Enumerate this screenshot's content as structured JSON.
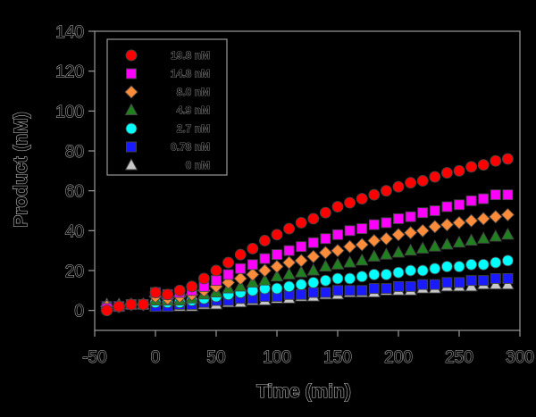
{
  "chart_data": {
    "type": "scatter",
    "title": "",
    "xlabel": "Time (min)",
    "ylabel": "Product (nM)",
    "xlim": [
      -50,
      300
    ],
    "ylim": [
      -10,
      140
    ],
    "xticks": [
      -50,
      0,
      50,
      100,
      150,
      200,
      250,
      300
    ],
    "yticks": [
      0,
      20,
      40,
      60,
      80,
      100,
      120,
      140
    ],
    "legend_position": "top-left",
    "x": [
      -40,
      -30,
      -20,
      -10,
      0,
      10,
      20,
      30,
      40,
      50,
      60,
      70,
      80,
      90,
      100,
      110,
      120,
      130,
      140,
      150,
      160,
      170,
      180,
      190,
      200,
      210,
      220,
      230,
      240,
      250,
      260,
      270,
      280,
      290
    ],
    "series": [
      {
        "name": "19.8 nM",
        "marker": "circle",
        "color": "#ff0000",
        "values": [
          0,
          2,
          3,
          3,
          9,
          8,
          10,
          12,
          16,
          20,
          24,
          28,
          31,
          35,
          38,
          41,
          44,
          46,
          49,
          52,
          54,
          56,
          58,
          60,
          62,
          64,
          65,
          67,
          69,
          70,
          72,
          73,
          75,
          76
        ]
      },
      {
        "name": "14.8 nM",
        "marker": "square",
        "color": "#ff00ff",
        "values": [
          1,
          2,
          3,
          3,
          9,
          8,
          9,
          10,
          12,
          15,
          18,
          21,
          23,
          26,
          28,
          30,
          32,
          34,
          36,
          38,
          40,
          41,
          43,
          44,
          46,
          47,
          49,
          50,
          52,
          53,
          55,
          56,
          58,
          58
        ]
      },
      {
        "name": "8.0 nM",
        "marker": "diamond",
        "color": "#ff8c3a",
        "values": [
          2,
          2,
          3,
          3,
          7,
          6,
          7,
          8,
          10,
          12,
          14,
          16,
          18,
          20,
          22,
          24,
          25,
          27,
          29,
          30,
          32,
          33,
          35,
          36,
          38,
          39,
          40,
          42,
          43,
          44,
          45,
          46,
          47,
          48
        ]
      },
      {
        "name": "4.9 nM",
        "marker": "triangle",
        "color": "#208020",
        "values": [
          2,
          2,
          3,
          3,
          5,
          5,
          5,
          6,
          8,
          9,
          11,
          12,
          14,
          15,
          17,
          18,
          19,
          20,
          22,
          23,
          24,
          25,
          27,
          28,
          29,
          30,
          31,
          32,
          33,
          34,
          35,
          36,
          37,
          38
        ]
      },
      {
        "name": "2.7 nM",
        "marker": "circle",
        "color": "#00ffff",
        "values": [
          2,
          2,
          3,
          3,
          4,
          4,
          4,
          5,
          6,
          7,
          8,
          9,
          10,
          11,
          11,
          12,
          13,
          14,
          15,
          16,
          16,
          17,
          18,
          18,
          19,
          20,
          20,
          21,
          22,
          22,
          23,
          23,
          24,
          25
        ]
      },
      {
        "name": "0.78 nM",
        "marker": "square",
        "color": "#1a1aff",
        "values": [
          2,
          2,
          3,
          3,
          2,
          2,
          3,
          3,
          4,
          5,
          5,
          6,
          6,
          7,
          7,
          8,
          8,
          9,
          9,
          10,
          10,
          10,
          11,
          11,
          12,
          12,
          13,
          13,
          14,
          14,
          15,
          15,
          16,
          16
        ]
      },
      {
        "name": "0 nM",
        "marker": "triangle",
        "color": "#c8c8c8",
        "values": [
          3,
          3,
          3,
          3,
          2,
          2,
          2,
          2,
          3,
          3,
          4,
          4,
          5,
          5,
          6,
          6,
          7,
          7,
          8,
          8,
          9,
          9,
          9,
          10,
          10,
          10,
          11,
          11,
          12,
          12,
          12,
          13,
          13,
          13
        ]
      }
    ]
  }
}
